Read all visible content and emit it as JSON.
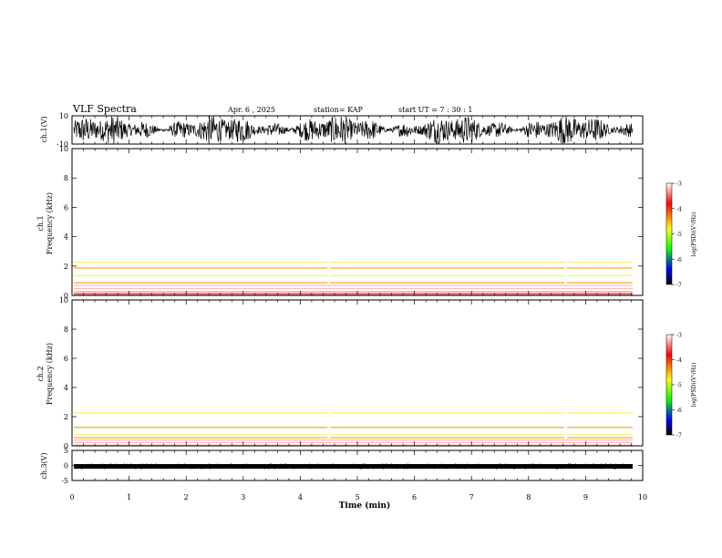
{
  "header": {
    "title": "VLF Spectra",
    "date": "Apr. 6 , 2025",
    "station": "station= KAP",
    "start": "start UT = 7 : 30 : 1"
  },
  "chart_data": [
    {
      "type": "line",
      "name": "ch1-waveform",
      "ylabel": "ch.1(V)",
      "ylim": [
        -10,
        10
      ],
      "yticks": [
        "10",
        "-10"
      ],
      "xlim": [
        0,
        10
      ]
    },
    {
      "type": "heatmap",
      "name": "ch1-spectrogram",
      "ylabel_top": "ch.1",
      "ylabel": "Frequency (kHz)",
      "ylim": [
        0,
        10
      ],
      "yticks": [
        "0",
        "2",
        "4",
        "6",
        "8",
        "10"
      ],
      "xlim": [
        0,
        10
      ],
      "colorbar": {
        "label": "log(PSD)(V²/Hz)",
        "range": [
          -7,
          -3
        ],
        "ticks": [
          "-3",
          "-4",
          "-5",
          "-6",
          "-7"
        ],
        "colors": [
          "#ffffff",
          "#ff0000",
          "#ffff00",
          "#00ff00",
          "#0000ff",
          "#000000"
        ]
      },
      "bands_khz": {
        "strong_low": [
          1.1,
          3.2
        ],
        "gap": [
          0.2,
          0.8
        ]
      }
    },
    {
      "type": "heatmap",
      "name": "ch2-spectrogram",
      "ylabel_top": "ch.2",
      "ylabel": "Frequency (kHz)",
      "ylim": [
        0,
        10
      ],
      "yticks": [
        "0",
        "2",
        "4",
        "6",
        "8",
        "10"
      ],
      "xlim": [
        0,
        10
      ],
      "colorbar": {
        "label": "log(PSD)(V²/Hz)",
        "range": [
          -7,
          -3
        ],
        "ticks": [
          "-3",
          "-4",
          "-5",
          "-6",
          "-7"
        ],
        "colors": [
          "#ffffff",
          "#ff0000",
          "#ffff00",
          "#00ff00",
          "#0000ff",
          "#000000"
        ]
      },
      "bands_khz": {
        "strong_low": [
          0.5,
          3.2
        ],
        "gap": [
          0.0,
          0.5
        ]
      }
    },
    {
      "type": "line",
      "name": "ch3-waveform",
      "ylabel": "ch.3(V)",
      "ylim": [
        -5,
        5
      ],
      "yticks": [
        "5",
        "0",
        "-5"
      ],
      "level_v": -0.3,
      "xlim": [
        0,
        10
      ],
      "xlabel": "Time (min)",
      "xticks": [
        "0",
        "1",
        "2",
        "3",
        "4",
        "5",
        "6",
        "7",
        "8",
        "9",
        "10"
      ]
    }
  ],
  "colors": {
    "trace": "#000000",
    "axis": "#000000",
    "background": "#ffffff"
  }
}
